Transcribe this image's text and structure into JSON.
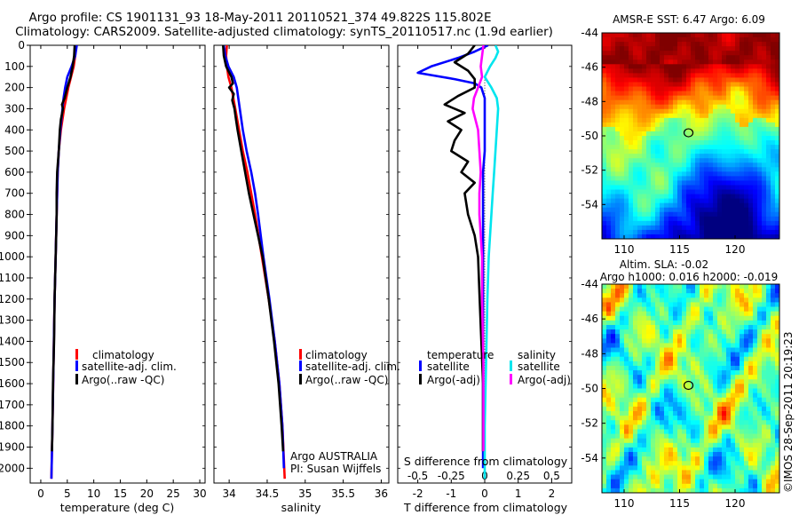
{
  "header": {
    "title_line1": "Argo profile: CS 1901131_93 18-May-2011 20110521_374 49.822S 115.802E",
    "title_line2": "Climatology: CARS2009. Satellite-adjusted climatology: synTS_20110517.nc (1.9d earlier)"
  },
  "colors": {
    "climatology": "#ff0000",
    "satellite": "#0000ff",
    "argo": "#000000",
    "salinity_satellite": "#00e5ee",
    "salinity_argo": "#ff00ff"
  },
  "chart_data": [
    {
      "type": "line",
      "panel": "temperature",
      "xlabel": "temperature (deg C)",
      "ylabel": "",
      "xlim": [
        -2,
        31
      ],
      "ylim": [
        2070,
        0
      ],
      "xticks": [
        0,
        5,
        10,
        15,
        20,
        25,
        30
      ],
      "yticks": [
        0,
        100,
        200,
        300,
        400,
        500,
        600,
        700,
        800,
        900,
        1000,
        1100,
        1200,
        1300,
        1400,
        1500,
        1600,
        1700,
        1800,
        1900,
        2000
      ],
      "legend": [
        "climatology",
        "satellite-adj. clim.",
        "Argo(..raw -QC)"
      ],
      "series": [
        {
          "name": "climatology",
          "depth": [
            0,
            50,
            100,
            150,
            200,
            250,
            300,
            400,
            500,
            600,
            700,
            800,
            1000,
            1200,
            1500,
            1800,
            2050
          ],
          "values": [
            6.7,
            6.5,
            6.2,
            5.7,
            5.2,
            4.8,
            4.4,
            3.8,
            3.4,
            3.2,
            3.1,
            3.0,
            2.8,
            2.6,
            2.4,
            2.2,
            2.0
          ]
        },
        {
          "name": "satellite-adj. clim.",
          "depth": [
            0,
            50,
            100,
            150,
            200,
            250,
            300,
            400,
            500,
            600,
            700,
            800,
            1000,
            1200,
            1500,
            1800,
            2050
          ],
          "values": [
            6.8,
            6.5,
            5.8,
            5.0,
            4.6,
            4.3,
            4.1,
            3.7,
            3.4,
            3.2,
            3.1,
            3.0,
            2.8,
            2.6,
            2.4,
            2.2,
            2.0
          ]
        },
        {
          "name": "Argo(..raw -QC)",
          "depth": [
            0,
            50,
            100,
            150,
            200,
            250,
            280,
            300,
            350,
            400,
            500,
            600,
            700,
            800,
            900,
            1000,
            1200,
            1400,
            1600,
            1800,
            1920
          ],
          "values": [
            6.4,
            6.3,
            6.0,
            5.6,
            5.0,
            4.5,
            4.0,
            4.2,
            3.8,
            3.6,
            3.4,
            3.1,
            3.0,
            3.0,
            2.9,
            2.8,
            2.6,
            2.5,
            2.3,
            2.2,
            2.1
          ]
        }
      ]
    },
    {
      "type": "line",
      "panel": "salinity",
      "xlabel": "salinity",
      "ylabel": "",
      "xlim": [
        33.8,
        36.1
      ],
      "ylim": [
        2070,
        0
      ],
      "xticks": [
        34,
        34.5,
        35,
        35.5,
        36
      ],
      "legend": [
        "climatology",
        "satellite-adj. clim.",
        "Argo(..raw -QC)"
      ],
      "series": [
        {
          "name": "climatology",
          "depth": [
            0,
            50,
            100,
            150,
            200,
            300,
            400,
            500,
            600,
            700,
            800,
            1000,
            1200,
            1400,
            1600,
            1800,
            2050
          ],
          "values": [
            33.97,
            33.96,
            33.97,
            33.99,
            34.03,
            34.08,
            34.13,
            34.18,
            34.24,
            34.29,
            34.34,
            34.43,
            34.52,
            34.6,
            34.66,
            34.7,
            34.73
          ]
        },
        {
          "name": "satellite-adj. clim.",
          "depth": [
            0,
            50,
            100,
            150,
            200,
            300,
            400,
            500,
            600,
            700,
            800,
            1000,
            1200,
            1400,
            1600,
            1800,
            2000
          ],
          "values": [
            33.93,
            33.95,
            33.99,
            34.06,
            34.1,
            34.14,
            34.18,
            34.23,
            34.29,
            34.34,
            34.38,
            34.45,
            34.53,
            34.6,
            34.66,
            34.7,
            34.72
          ]
        },
        {
          "name": "Argo(..raw -QC)",
          "depth": [
            0,
            50,
            100,
            150,
            180,
            200,
            230,
            260,
            300,
            350,
            400,
            500,
            600,
            700,
            800,
            900,
            1000,
            1200,
            1400,
            1600,
            1800,
            1920
          ],
          "values": [
            33.92,
            33.93,
            33.96,
            34.03,
            34.05,
            34.0,
            34.06,
            34.04,
            34.07,
            34.09,
            34.11,
            34.16,
            34.21,
            34.26,
            34.32,
            34.38,
            34.44,
            34.52,
            34.59,
            34.65,
            34.69,
            34.71
          ]
        }
      ]
    },
    {
      "type": "line",
      "panel": "difference",
      "xlabel": "T difference from climatology",
      "xlabel_top": "S difference from climatology",
      "xlim": [
        -2.6,
        2.6
      ],
      "ylim": [
        2070,
        0
      ],
      "xticks": [
        -2,
        -1,
        0,
        1,
        2
      ],
      "xticks_top": [
        -0.5,
        -0.25,
        0,
        0.25,
        0.5
      ],
      "legend_headers": [
        "temperature",
        "salinity"
      ],
      "legend": [
        "satellite",
        "Argo(-adj)",
        "satellite",
        "Argo(-adj)"
      ],
      "series": [
        {
          "name": "temperature satellite",
          "depth": [
            0,
            30,
            60,
            100,
            130,
            160,
            180,
            200,
            250,
            300,
            400,
            500,
            600,
            800,
            1000,
            1200,
            1500,
            1800,
            2000
          ],
          "values": [
            0.1,
            -0.3,
            -0.8,
            -1.6,
            -2.0,
            -0.9,
            -0.3,
            -0.1,
            0.0,
            0.0,
            0.0,
            0.0,
            -0.05,
            -0.05,
            -0.05,
            -0.05,
            -0.05,
            -0.05,
            -0.05
          ]
        },
        {
          "name": "temperature Argo(-adj)",
          "depth": [
            0,
            40,
            80,
            120,
            160,
            200,
            240,
            280,
            320,
            360,
            400,
            450,
            500,
            550,
            600,
            650,
            700,
            800,
            900,
            1000,
            1200,
            1400,
            1600,
            1800,
            1920
          ],
          "values": [
            -0.3,
            -0.5,
            -0.9,
            -0.5,
            -0.3,
            -0.3,
            -0.8,
            -1.2,
            -0.6,
            -1.1,
            -0.7,
            -0.9,
            -1.0,
            -0.5,
            -0.7,
            -0.3,
            -0.6,
            -0.5,
            -0.3,
            -0.2,
            -0.15,
            -0.1,
            -0.05,
            -0.05,
            -0.05
          ]
        },
        {
          "name": "salinity satellite",
          "depth": [
            0,
            30,
            60,
            100,
            150,
            200,
            250,
            300,
            400,
            500,
            600,
            700,
            800,
            1000,
            1200,
            1500,
            1800,
            2050
          ],
          "values": [
            0.08,
            0.1,
            0.08,
            0.04,
            0.0,
            0.05,
            0.09,
            0.1,
            0.09,
            0.08,
            0.07,
            0.06,
            0.05,
            0.03,
            0.02,
            0.01,
            0.0,
            0.0
          ]
        },
        {
          "name": "salinity Argo(-adj)",
          "depth": [
            0,
            50,
            100,
            150,
            200,
            250,
            300,
            400,
            500,
            600,
            700,
            800,
            1000,
            1200,
            1500,
            1800,
            1920
          ],
          "values": [
            -0.01,
            -0.02,
            -0.03,
            -0.02,
            -0.05,
            -0.08,
            -0.09,
            -0.05,
            -0.04,
            -0.03,
            -0.04,
            -0.04,
            -0.02,
            -0.02,
            -0.01,
            -0.01,
            -0.01
          ]
        }
      ],
      "annotations": [
        "Argo AUSTRALIA",
        "PI: Susan Wijffels"
      ]
    },
    {
      "type": "heatmap",
      "panel": "sst_map",
      "title": "AMSR-E SST: 6.47 Argo: 6.09",
      "xlim": [
        108,
        124
      ],
      "ylim": [
        -56,
        -44
      ],
      "xticks": [
        110,
        115,
        120
      ],
      "yticks": [
        -44,
        -46,
        -48,
        -50,
        -52,
        -54
      ],
      "marker": {
        "lon": 115.802,
        "lat": -49.822
      }
    },
    {
      "type": "heatmap",
      "panel": "sla_map",
      "title_line1": "Altim. SLA: -0.02",
      "title_line2": "Argo h1000: 0.016 h2000: -0.019",
      "xlim": [
        108,
        124
      ],
      "ylim": [
        -56,
        -44
      ],
      "xticks": [
        110,
        115,
        120
      ],
      "yticks": [
        -44,
        -46,
        -48,
        -50,
        -52,
        -54
      ],
      "marker": {
        "lon": 115.802,
        "lat": -49.822
      }
    }
  ],
  "watermark": "©IMOS 28-Sep-2011 20:19:23"
}
